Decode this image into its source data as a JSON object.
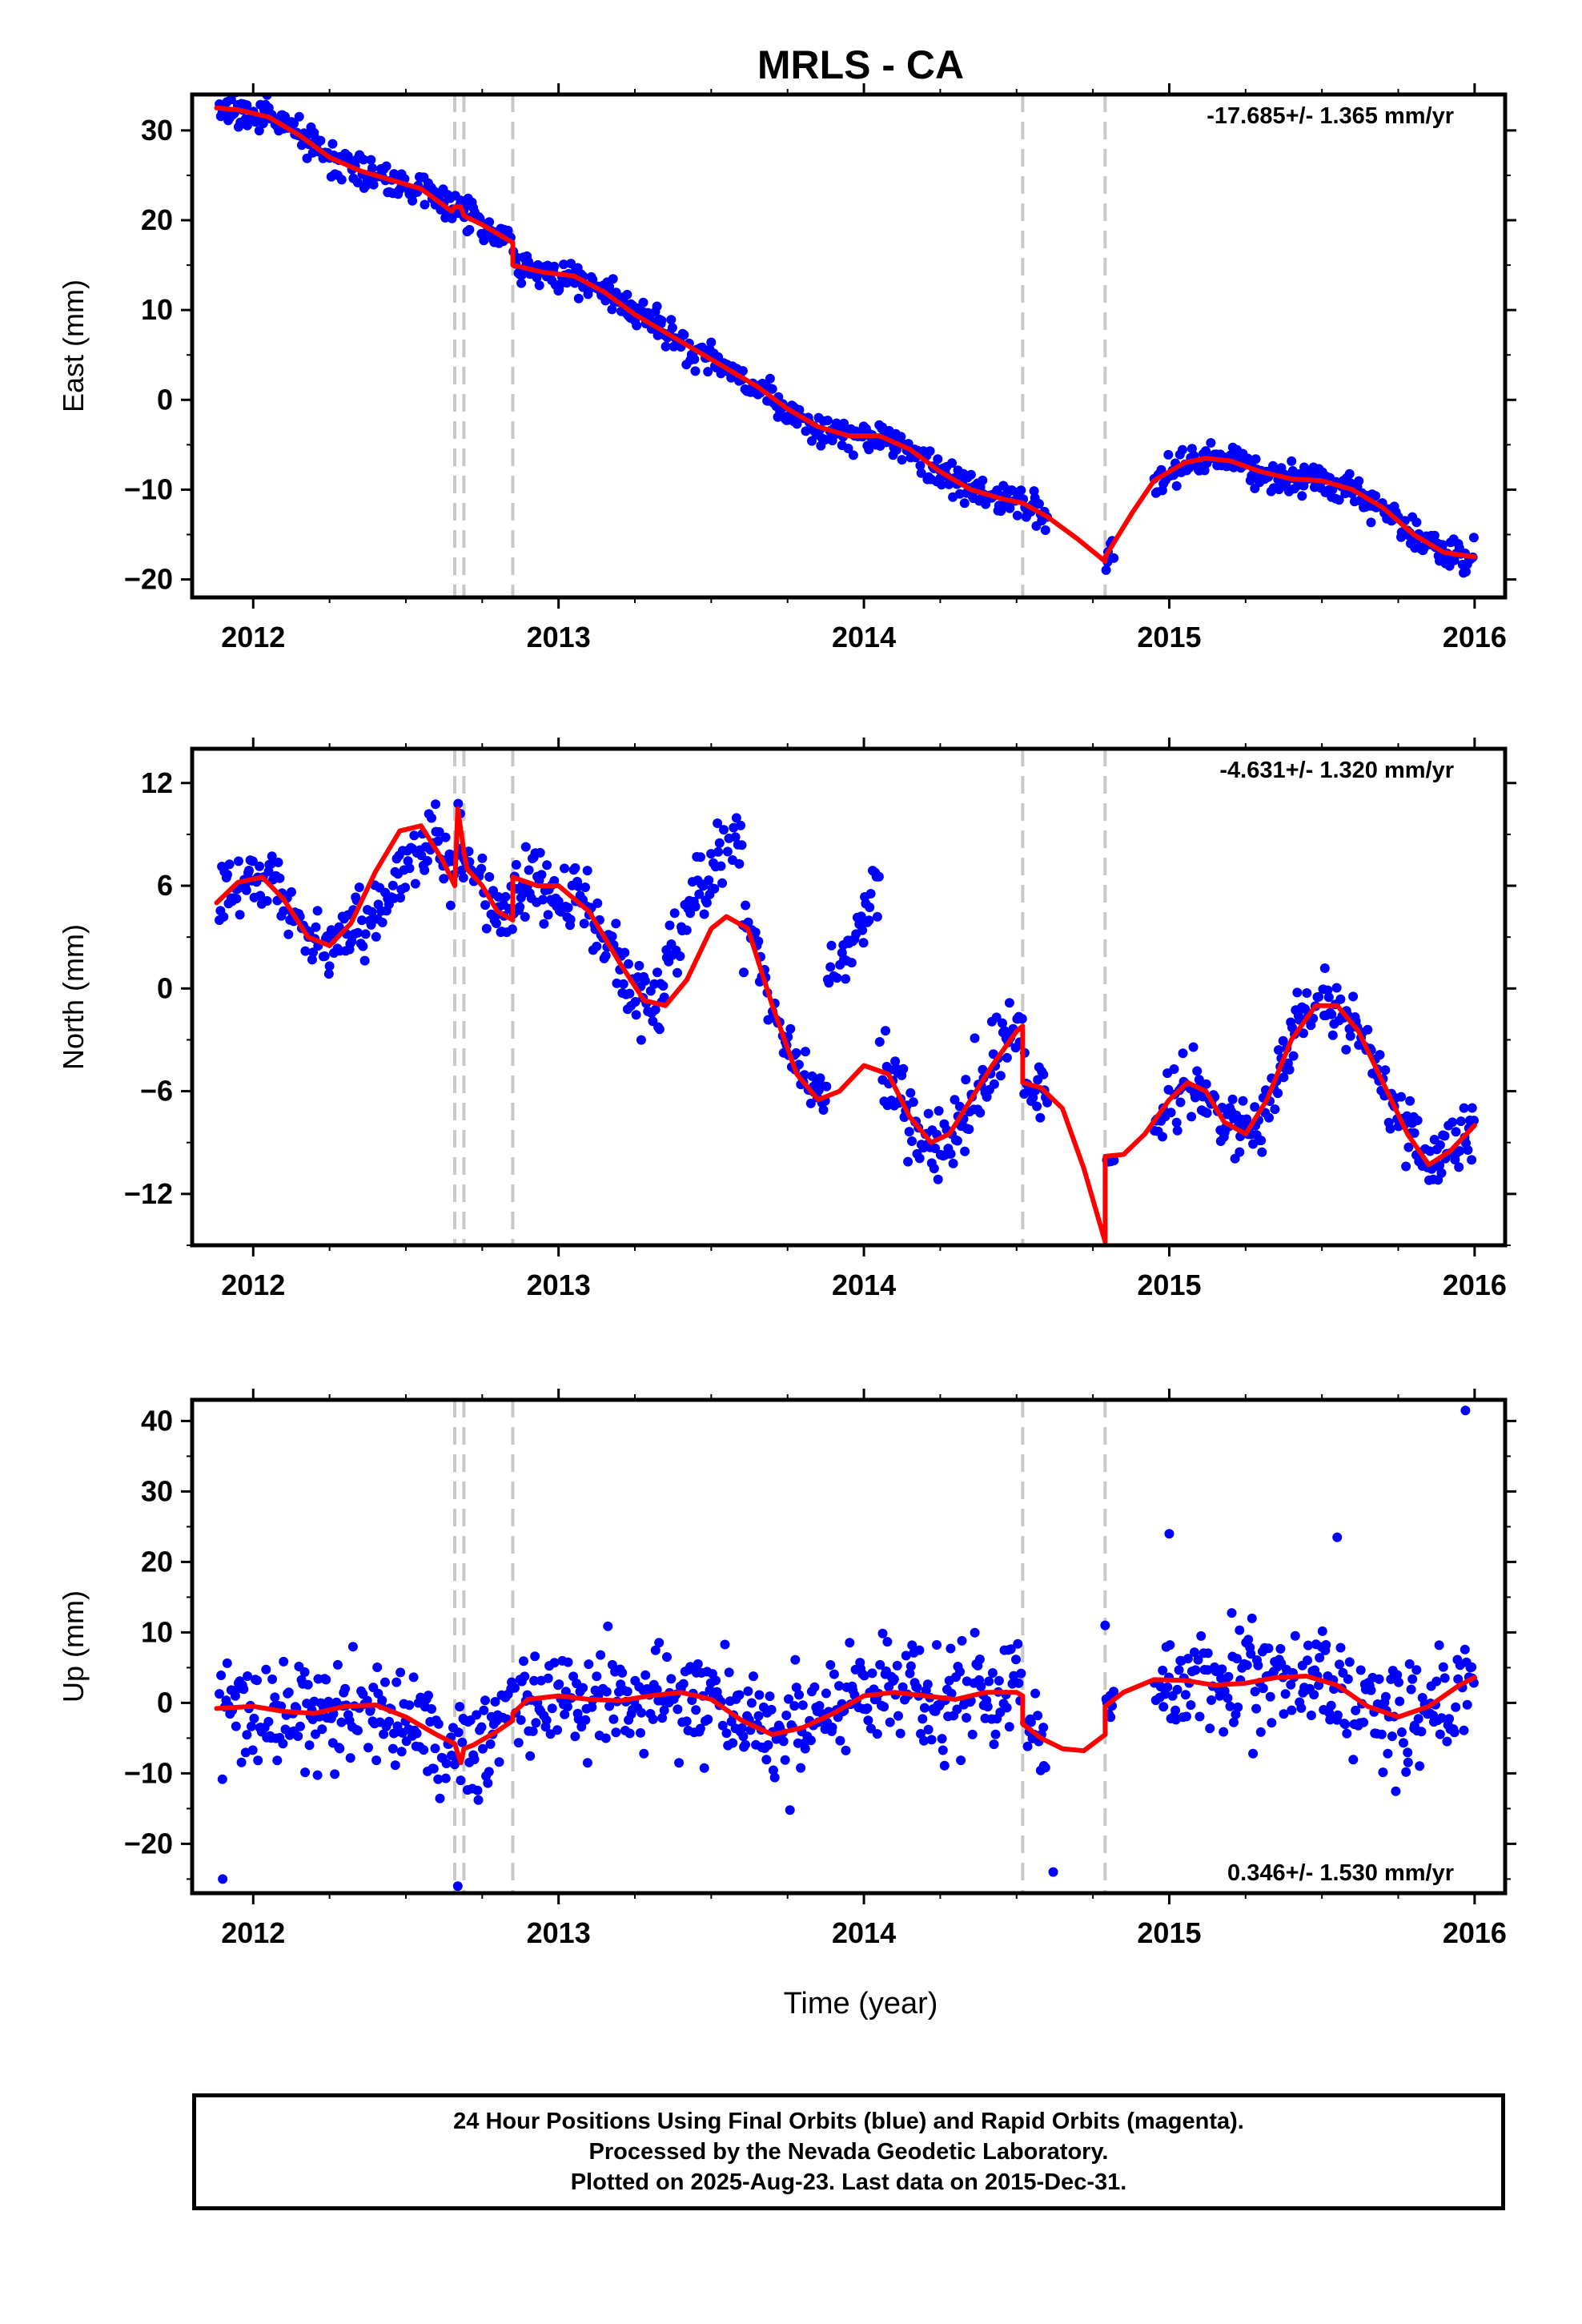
{
  "title": "MRLS - CA",
  "xlabel": "Time (year)",
  "footer": {
    "line1": "24 Hour Positions Using Final Orbits (blue) and Rapid Orbits (magenta).",
    "line2": "Processed by the Nevada Geodetic Laboratory.",
    "line3": "Plotted on 2025-Aug-23. Last data on 2015-Dec-31."
  },
  "colors": {
    "points": "#0000ff",
    "fit": "#ff0000",
    "event_lines": "#c8c8c8",
    "frame": "#000000"
  },
  "event_lines": [
    2012.66,
    2012.69,
    2012.85,
    2014.52,
    2014.79
  ],
  "chart_data": [
    {
      "type": "scatter",
      "id": "east",
      "ylabel": "East (mm)",
      "xlim": [
        2011.8,
        2016.1
      ],
      "ylim": [
        -22,
        34
      ],
      "xticks": [
        2012,
        2013,
        2014,
        2015,
        2016
      ],
      "yticks": [
        -20,
        -10,
        0,
        10,
        20,
        30
      ],
      "rate_label": "-17.685+/- 1.365 mm/yr",
      "rate_position": "top-right",
      "gaps": [
        [
          2014.6,
          2014.79
        ],
        [
          2014.82,
          2014.95
        ]
      ],
      "series": [
        {
          "role": "fit",
          "x": [
            2011.88,
            2011.95,
            2012.05,
            2012.15,
            2012.25,
            2012.35,
            2012.45,
            2012.55,
            2012.65,
            2012.66,
            2012.68,
            2012.69,
            2012.75,
            2012.85,
            2012.85,
            2012.95,
            2013.05,
            2013.15,
            2013.25,
            2013.35,
            2013.45,
            2013.55,
            2013.65,
            2013.75,
            2013.85,
            2013.95,
            2014.05,
            2014.15,
            2014.25,
            2014.35,
            2014.45,
            2014.52,
            2014.52,
            2014.6,
            2014.7,
            2014.79,
            2014.79,
            2014.88,
            2014.95,
            2015.05,
            2015.12,
            2015.2,
            2015.3,
            2015.4,
            2015.5,
            2015.6,
            2015.7,
            2015.8,
            2015.9,
            2016.0
          ],
          "y": [
            32.5,
            32.3,
            31.5,
            29.5,
            27,
            25.5,
            24.5,
            23.5,
            21,
            21.5,
            21.5,
            20.5,
            19.5,
            17.5,
            15,
            14.2,
            13.8,
            12,
            9.5,
            7.5,
            5.5,
            3.5,
            1.5,
            -1,
            -3,
            -4,
            -4,
            -5.5,
            -8,
            -10,
            -11,
            -11.5,
            -11.5,
            -13,
            -15.5,
            -18,
            -17.5,
            -12.5,
            -9,
            -7,
            -6.5,
            -6.8,
            -8,
            -8.8,
            -9,
            -10,
            -12,
            -15,
            -17,
            -17.5
          ]
        }
      ]
    },
    {
      "type": "scatter",
      "id": "north",
      "ylabel": "North (mm)",
      "xlim": [
        2011.8,
        2016.1
      ],
      "ylim": [
        -15,
        14
      ],
      "xticks": [
        2012,
        2013,
        2014,
        2015,
        2016
      ],
      "yticks": [
        -12,
        -6,
        0,
        6,
        12
      ],
      "rate_label": "-4.631+/- 1.320 mm/yr",
      "rate_position": "top-right",
      "gaps": [
        [
          2014.6,
          2014.79
        ],
        [
          2014.82,
          2014.95
        ]
      ],
      "blobs": [
        [
          2012.35,
          2012.6,
          2.0,
          9.0
        ],
        [
          2013.35,
          2013.6,
          3.0,
          10.5
        ],
        [
          2013.88,
          2014.05,
          2.0,
          8.5
        ]
      ],
      "series": [
        {
          "role": "fit",
          "x": [
            2011.88,
            2011.95,
            2012.03,
            2012.1,
            2012.18,
            2012.25,
            2012.32,
            2012.4,
            2012.48,
            2012.55,
            2012.62,
            2012.66,
            2012.67,
            2012.69,
            2012.7,
            2012.75,
            2012.8,
            2012.85,
            2012.85,
            2012.93,
            2013.0,
            2013.1,
            2013.2,
            2013.28,
            2013.35,
            2013.42,
            2013.5,
            2013.55,
            2013.62,
            2013.7,
            2013.78,
            2013.85,
            2013.92,
            2014.0,
            2014.08,
            2014.15,
            2014.22,
            2014.28,
            2014.35,
            2014.42,
            2014.5,
            2014.52,
            2014.52,
            2014.58,
            2014.65,
            2014.72,
            2014.79,
            2014.79,
            2014.85,
            2014.92,
            2015.0,
            2015.06,
            2015.12,
            2015.18,
            2015.25,
            2015.32,
            2015.4,
            2015.48,
            2015.55,
            2015.62,
            2015.7,
            2015.78,
            2015.85,
            2015.92,
            2016.0
          ],
          "y": [
            5,
            6.2,
            6.5,
            5.2,
            3,
            2.5,
            3.8,
            6.8,
            9.2,
            9.5,
            7.5,
            6,
            10.5,
            8,
            7,
            6,
            4.5,
            4,
            6.5,
            6,
            6,
            4.5,
            1.5,
            -0.7,
            -1,
            0.5,
            3.5,
            4.2,
            3.5,
            -1,
            -5,
            -6.5,
            -6,
            -4.5,
            -5,
            -7.5,
            -9,
            -8.5,
            -6.5,
            -4.5,
            -2.5,
            -2.2,
            -5.5,
            -5.8,
            -7,
            -10.5,
            -14.8,
            -9.8,
            -9.7,
            -8.5,
            -6.5,
            -5.5,
            -6,
            -7.8,
            -8.5,
            -6.5,
            -3,
            -1,
            -1,
            -2.5,
            -5.5,
            -8.5,
            -10.3,
            -9.5,
            -8
          ]
        }
      ]
    },
    {
      "type": "scatter",
      "id": "up",
      "ylabel": "Up (mm)",
      "xlim": [
        2011.8,
        2016.1
      ],
      "ylim": [
        -27,
        43
      ],
      "xticks": [
        2012,
        2013,
        2014,
        2015,
        2016
      ],
      "yticks": [
        -20,
        -10,
        0,
        10,
        20,
        30,
        40
      ],
      "rate_label": "0.346+/- 1.530 mm/yr",
      "rate_position": "bottom-right",
      "gaps": [
        [
          2014.6,
          2014.79
        ],
        [
          2014.82,
          2014.95
        ]
      ],
      "outliers": [
        [
          2011.9,
          -25
        ],
        [
          2012.67,
          -26
        ],
        [
          2015.97,
          41.5
        ],
        [
          2015.55,
          23.5
        ],
        [
          2015.0,
          24
        ],
        [
          2014.62,
          -24
        ],
        [
          2014.79,
          11
        ]
      ],
      "series": [
        {
          "role": "fit",
          "x": [
            2011.88,
            2012.0,
            2012.1,
            2012.2,
            2012.3,
            2012.4,
            2012.5,
            2012.6,
            2012.66,
            2012.68,
            2012.69,
            2012.72,
            2012.8,
            2012.85,
            2012.85,
            2012.9,
            2013.0,
            2013.1,
            2013.2,
            2013.3,
            2013.4,
            2013.5,
            2013.6,
            2013.7,
            2013.8,
            2013.9,
            2014.0,
            2014.1,
            2014.2,
            2014.3,
            2014.4,
            2014.5,
            2014.52,
            2014.52,
            2014.58,
            2014.65,
            2014.72,
            2014.79,
            2014.79,
            2014.85,
            2014.95,
            2015.05,
            2015.15,
            2015.25,
            2015.35,
            2015.45,
            2015.55,
            2015.65,
            2015.75,
            2015.85,
            2015.95,
            2016.0
          ],
          "y": [
            -0.8,
            -0.5,
            -1.2,
            -1.5,
            -0.5,
            -0.3,
            -2,
            -4.5,
            -5.8,
            -8.5,
            -6.5,
            -6,
            -4,
            -2.5,
            -1.5,
            0.5,
            1,
            0.5,
            0.3,
            1,
            1.5,
            0.5,
            -2.5,
            -4.5,
            -3.5,
            -1.5,
            1,
            1.5,
            1,
            0.5,
            1.5,
            1.5,
            1,
            -3,
            -5,
            -6.5,
            -6.8,
            -4.5,
            -0.5,
            1.5,
            3.3,
            3.2,
            2.5,
            2.8,
            3.6,
            3.8,
            2.5,
            -0.5,
            -2,
            -0.5,
            2.5,
            3.6
          ]
        }
      ]
    }
  ]
}
